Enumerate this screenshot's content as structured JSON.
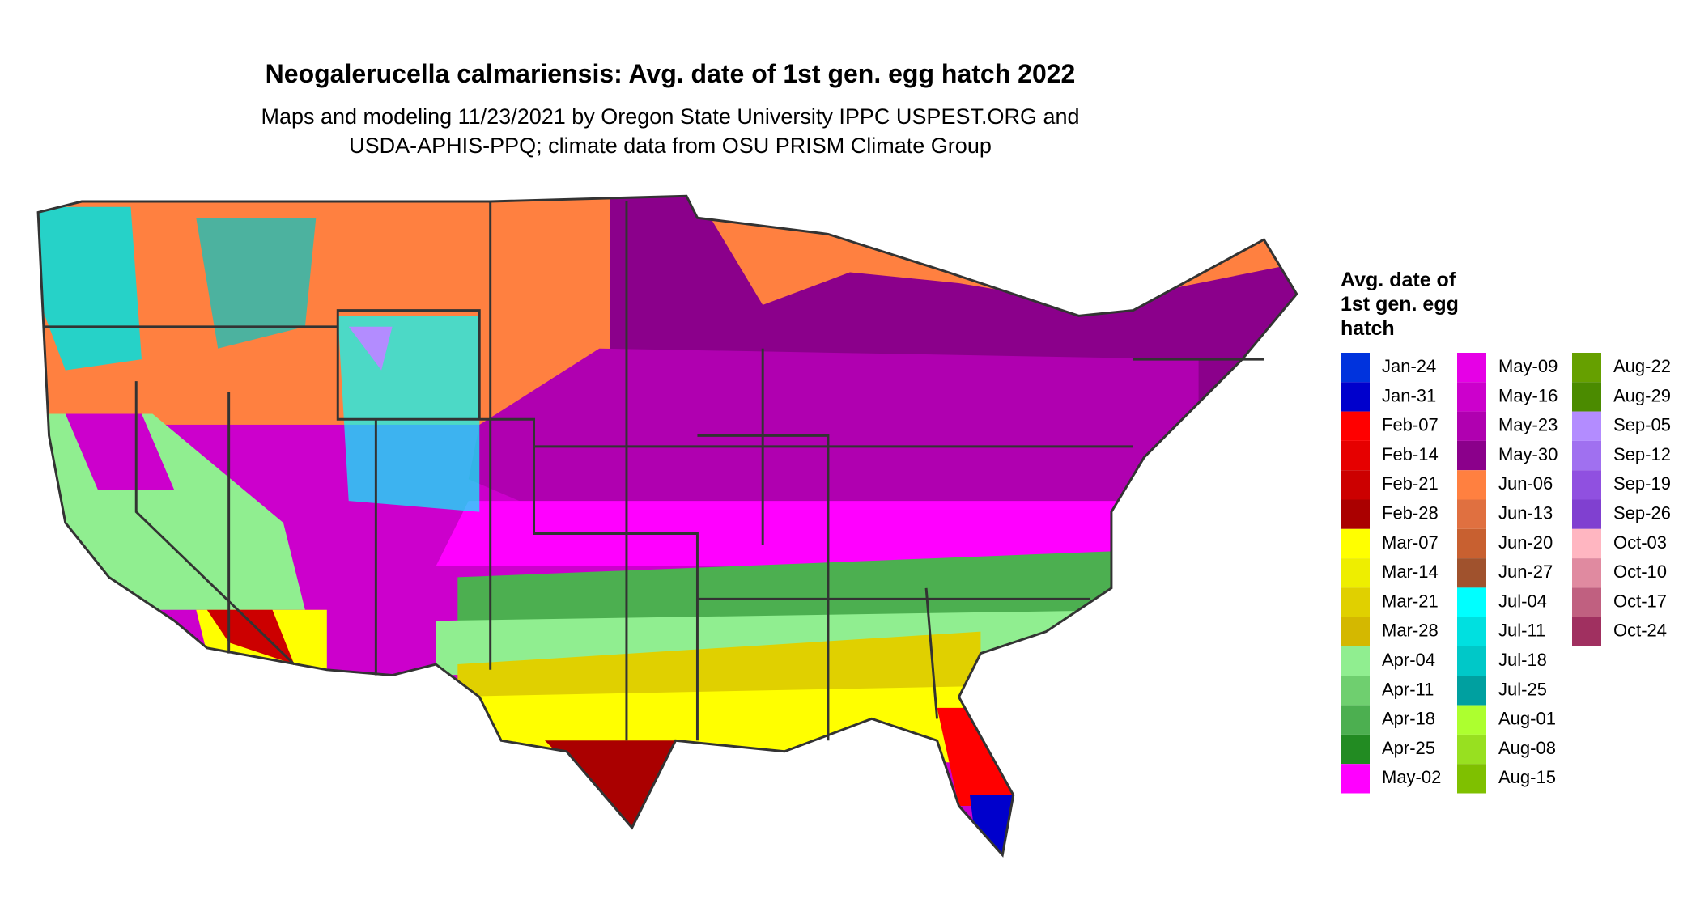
{
  "header": {
    "title": "Neogalerucella calmariensis: Avg. date of 1st gen. egg hatch 2022",
    "subtitle": [
      "Maps and modeling 11/23/2021 by Oregon State University IPPC USPEST.ORG and",
      "USDA-APHIS-PPQ; climate data from OSU PRISM Climate Group"
    ]
  },
  "legend": {
    "title": [
      "Avg. date of",
      "1st gen. egg",
      "hatch"
    ],
    "items": [
      {
        "label": "Jan-24",
        "color": "#0033dd"
      },
      {
        "label": "Jan-31",
        "color": "#0000cc"
      },
      {
        "label": "Feb-07",
        "color": "#ff0000"
      },
      {
        "label": "Feb-14",
        "color": "#e60000"
      },
      {
        "label": "Feb-21",
        "color": "#cc0000"
      },
      {
        "label": "Feb-28",
        "color": "#aa0000"
      },
      {
        "label": "Mar-07",
        "color": "#ffff00"
      },
      {
        "label": "Mar-14",
        "color": "#eeee00"
      },
      {
        "label": "Mar-21",
        "color": "#e0d000"
      },
      {
        "label": "Mar-28",
        "color": "#d4b800"
      },
      {
        "label": "Apr-04",
        "color": "#90ee90"
      },
      {
        "label": "Apr-11",
        "color": "#6fcf6f"
      },
      {
        "label": "Apr-18",
        "color": "#4caf50"
      },
      {
        "label": "Apr-25",
        "color": "#228b22"
      },
      {
        "label": "May-02",
        "color": "#ff00ff"
      },
      {
        "label": "May-09",
        "color": "#e600e6"
      },
      {
        "label": "May-16",
        "color": "#cc00cc"
      },
      {
        "label": "May-23",
        "color": "#b000b0"
      },
      {
        "label": "May-30",
        "color": "#8b008b"
      },
      {
        "label": "Jun-06",
        "color": "#ff8040"
      },
      {
        "label": "Jun-13",
        "color": "#e07040"
      },
      {
        "label": "Jun-20",
        "color": "#c86030"
      },
      {
        "label": "Jun-27",
        "color": "#a0522d"
      },
      {
        "label": "Jul-04",
        "color": "#00ffff"
      },
      {
        "label": "Jul-11",
        "color": "#00e0e0"
      },
      {
        "label": "Jul-18",
        "color": "#00c8c8"
      },
      {
        "label": "Jul-25",
        "color": "#00a0a0"
      },
      {
        "label": "Aug-01",
        "color": "#adff2f"
      },
      {
        "label": "Aug-08",
        "color": "#98e020"
      },
      {
        "label": "Aug-15",
        "color": "#7fc000"
      },
      {
        "label": "Aug-22",
        "color": "#66a000"
      },
      {
        "label": "Aug-29",
        "color": "#4b8b00"
      },
      {
        "label": "Sep-05",
        "color": "#b38cff"
      },
      {
        "label": "Sep-12",
        "color": "#a070f0"
      },
      {
        "label": "Sep-19",
        "color": "#9050e0"
      },
      {
        "label": "Sep-26",
        "color": "#8040d0"
      },
      {
        "label": "Oct-03",
        "color": "#ffb6c1"
      },
      {
        "label": "Oct-10",
        "color": "#e08aa0"
      },
      {
        "label": "Oct-17",
        "color": "#c06080"
      },
      {
        "label": "Oct-24",
        "color": "#a03060"
      }
    ]
  }
}
